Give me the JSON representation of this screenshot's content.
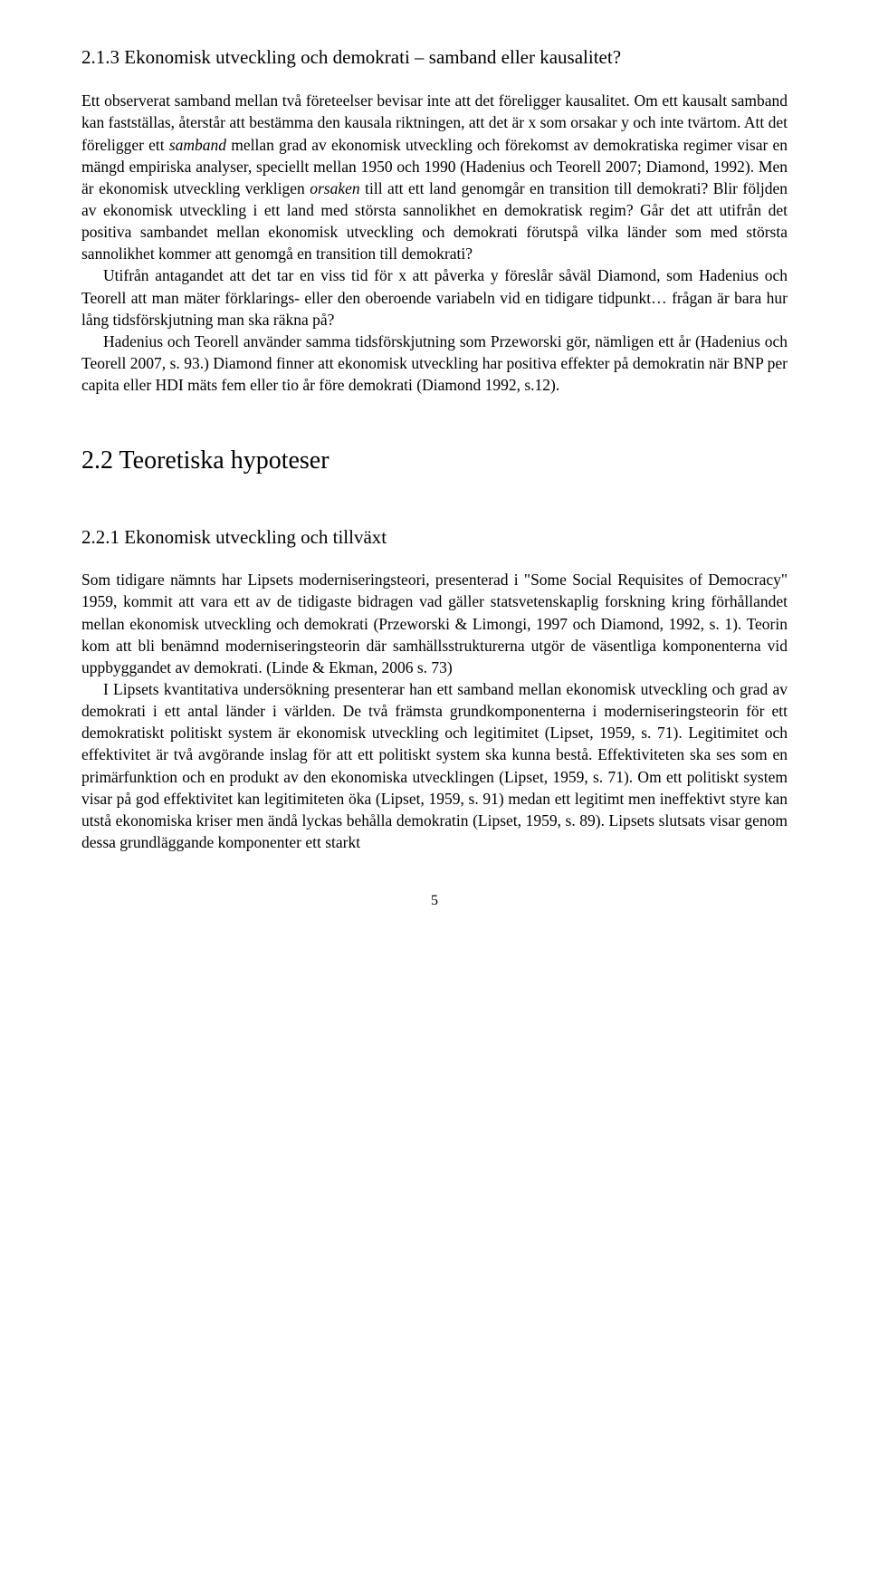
{
  "section1": {
    "heading": "2.1.3 Ekonomisk utveckling och demokrati – samband eller kausalitet?",
    "p1_part1": "Ett observerat samband mellan två företeelser bevisar inte att det föreligger kausalitet. Om ett kausalt samband kan fastställas, återstår att bestämma den kausala riktningen, att det är x som orsakar y och inte tvärtom. Att det föreligger ett ",
    "p1_italic1": "samband",
    "p1_part2": " mellan grad av ekonomisk utveckling och förekomst av demokratiska regimer visar en mängd empiriska analyser, speciellt mellan 1950 och 1990 (Hadenius och Teorell 2007; Diamond, 1992). Men är ekonomisk utveckling verkligen ",
    "p1_italic2": "orsaken",
    "p1_part3": " till att ett land genomgår en transition till demokrati? Blir följden av ekonomisk utveckling i ett land med största sannolikhet en demokratisk regim? Går det att utifrån det positiva sambandet mellan ekonomisk utveckling och demokrati förutspå vilka länder som med största sannolikhet kommer att genomgå en transition till demokrati?",
    "p2": "Utifrån antagandet att det tar en viss tid för x att påverka y föreslår såväl Diamond, som Hadenius och Teorell att man mäter förklarings- eller den oberoende variabeln vid en tidigare tidpunkt… frågan är bara hur lång tidsförskjutning man ska räkna på?",
    "p3": "Hadenius och Teorell använder samma tidsförskjutning som Przeworski gör, nämligen ett år (Hadenius och Teorell 2007, s. 93.) Diamond finner att ekonomisk utveckling har positiva effekter på demokratin när BNP per capita eller HDI mäts fem eller tio år före demokrati (Diamond 1992, s.12)."
  },
  "section2": {
    "heading": "2.2   Teoretiska hypoteser",
    "subheading": "2.2.1 Ekonomisk utveckling och tillväxt",
    "p1": "Som tidigare nämnts har Lipsets moderniseringsteori, presenterad i \"Some Social Requisites of Democracy\" 1959, kommit att vara ett av de tidigaste bidragen vad gäller statsvetenskaplig forskning kring förhållandet mellan ekonomisk utveckling och demokrati (Przeworski & Limongi, 1997 och Diamond, 1992, s. 1). Teorin kom att bli benämnd moderniseringsteorin där samhällsstrukturerna utgör de väsentliga komponenterna vid uppbyggandet av demokrati. (Linde & Ekman, 2006 s. 73)",
    "p2": "I Lipsets kvantitativa undersökning presenterar han ett samband mellan ekonomisk utveckling och grad av demokrati i ett antal länder i världen. De två främsta grundkomponenterna i moderniseringsteorin för ett demokratiskt politiskt system är ekonomisk utveckling och legitimitet (Lipset, 1959, s. 71). Legitimitet och effektivitet är två avgörande inslag för att ett politiskt system ska kunna bestå. Effektiviteten ska ses som en primärfunktion och en produkt av den ekonomiska utvecklingen (Lipset, 1959, s. 71). Om ett politiskt system visar på god effektivitet kan legitimiteten öka (Lipset, 1959, s. 91) medan ett legitimt men ineffektivt styre kan utstå ekonomiska kriser men ändå lyckas behålla demokratin (Lipset, 1959, s. 89). Lipsets slutsats visar genom dessa grundläggande komponenter ett starkt"
  },
  "pageNumber": "5"
}
